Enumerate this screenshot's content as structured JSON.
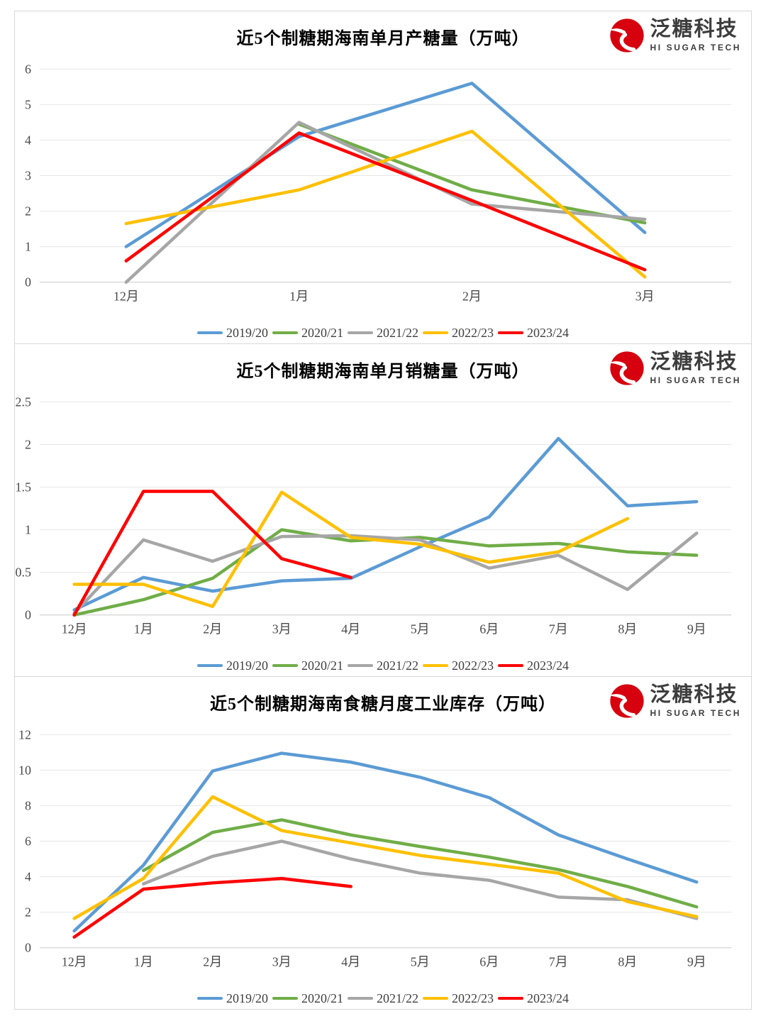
{
  "logo": {
    "brand_cn": "泛糖科技",
    "brand_en": "HI SUGAR TECH",
    "mark_color": "#d7000f"
  },
  "chart_data": [
    {
      "type": "line",
      "title": "近5个制糖期海南单月产糖量（万吨）",
      "categories": [
        "12月",
        "1月",
        "2月",
        "3月"
      ],
      "ylim": [
        0,
        6
      ],
      "yticks": [
        0,
        1,
        2,
        3,
        4,
        5,
        6
      ],
      "grid": true,
      "legend_position": "bottom",
      "series": [
        {
          "name": "2019/20",
          "color": "#5B9BD5",
          "values": [
            1.0,
            4.1,
            5.6,
            1.4
          ]
        },
        {
          "name": "2020/21",
          "color": "#70AD47",
          "values": [
            null,
            4.45,
            2.6,
            1.67
          ]
        },
        {
          "name": "2021/22",
          "color": "#A6A6A6",
          "values": [
            0.0,
            4.5,
            2.2,
            1.77
          ]
        },
        {
          "name": "2022/23",
          "color": "#FFC000",
          "values": [
            1.65,
            2.6,
            4.25,
            0.15
          ]
        },
        {
          "name": "2023/24",
          "color": "#FE0000",
          "values": [
            0.6,
            4.2,
            2.3,
            0.35
          ]
        }
      ]
    },
    {
      "type": "line",
      "title": "近5个制糖期海南单月销糖量（万吨）",
      "categories": [
        "12月",
        "1月",
        "2月",
        "3月",
        "4月",
        "5月",
        "6月",
        "7月",
        "8月",
        "9月"
      ],
      "ylim": [
        0,
        2.5
      ],
      "yticks": [
        0,
        0.5,
        1,
        1.5,
        2,
        2.5
      ],
      "grid": true,
      "legend_position": "bottom",
      "series": [
        {
          "name": "2019/20",
          "color": "#5B9BD5",
          "values": [
            0.06,
            0.44,
            0.28,
            0.4,
            0.43,
            0.8,
            1.15,
            2.07,
            1.28,
            1.33
          ]
        },
        {
          "name": "2020/21",
          "color": "#70AD47",
          "values": [
            0.0,
            0.18,
            0.43,
            1.0,
            0.87,
            0.91,
            0.81,
            0.84,
            0.74,
            0.7
          ]
        },
        {
          "name": "2021/22",
          "color": "#A6A6A6",
          "values": [
            0.02,
            0.88,
            0.63,
            0.92,
            0.93,
            0.88,
            0.55,
            0.7,
            0.3,
            0.96
          ]
        },
        {
          "name": "2022/23",
          "color": "#FFC000",
          "values": [
            0.36,
            0.36,
            0.1,
            1.44,
            0.91,
            0.83,
            0.62,
            0.74,
            1.13,
            null
          ]
        },
        {
          "name": "2023/24",
          "color": "#FE0000",
          "values": [
            0.0,
            1.45,
            1.45,
            0.66,
            0.44,
            null,
            null,
            null,
            null,
            null
          ]
        }
      ]
    },
    {
      "type": "line",
      "title": "近5个制糖期海南食糖月度工业库存（万吨）",
      "categories": [
        "12月",
        "1月",
        "2月",
        "3月",
        "4月",
        "5月",
        "6月",
        "7月",
        "8月",
        "9月"
      ],
      "ylim": [
        0,
        12
      ],
      "yticks": [
        0,
        2,
        4,
        6,
        8,
        10,
        12
      ],
      "grid": true,
      "legend_position": "bottom",
      "series": [
        {
          "name": "2019/20",
          "color": "#5B9BD5",
          "values": [
            0.95,
            4.65,
            9.95,
            10.95,
            10.45,
            9.6,
            8.45,
            6.35,
            5.0,
            3.7
          ]
        },
        {
          "name": "2020/21",
          "color": "#70AD47",
          "values": [
            null,
            4.35,
            6.5,
            7.2,
            6.35,
            5.7,
            5.1,
            4.4,
            3.45,
            2.3
          ]
        },
        {
          "name": "2021/22",
          "color": "#A6A6A6",
          "values": [
            null,
            3.6,
            5.15,
            6.0,
            5.0,
            4.2,
            3.8,
            2.85,
            2.7,
            1.65
          ]
        },
        {
          "name": "2022/23",
          "color": "#FFC000",
          "values": [
            1.65,
            3.9,
            8.5,
            6.6,
            5.9,
            5.2,
            4.7,
            4.2,
            2.6,
            1.75
          ]
        },
        {
          "name": "2023/24",
          "color": "#FE0000",
          "values": [
            0.6,
            3.3,
            3.65,
            3.9,
            3.45,
            null,
            null,
            null,
            null,
            null
          ]
        }
      ]
    }
  ]
}
